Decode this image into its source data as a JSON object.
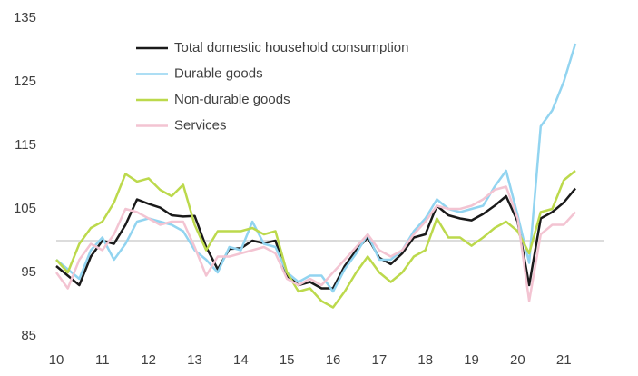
{
  "chart_data": {
    "type": "line",
    "x": [
      10,
      10.25,
      10.5,
      10.75,
      11,
      11.25,
      11.5,
      11.75,
      12,
      12.25,
      12.5,
      12.75,
      13,
      13.25,
      13.5,
      13.75,
      14,
      14.25,
      14.5,
      14.75,
      15,
      15.25,
      15.5,
      15.75,
      16,
      16.25,
      16.5,
      16.75,
      17,
      17.25,
      17.5,
      17.75,
      18,
      18.25,
      18.5,
      18.75,
      19,
      19.25,
      19.5,
      19.75,
      20,
      20.25,
      20.5,
      20.75,
      21,
      21.25
    ],
    "series": [
      {
        "name": "Total domestic household consumption",
        "color": "#1a1a1a",
        "values": [
          96,
          94.5,
          93,
          97.5,
          100,
          99.5,
          102.5,
          106.5,
          105.8,
          105.2,
          104,
          103.8,
          103.9,
          99,
          95.5,
          98.7,
          98.8,
          100,
          99.6,
          100,
          94.5,
          93,
          93.5,
          92.5,
          92.5,
          96,
          98.5,
          100.5,
          97.3,
          96.3,
          98,
          100.5,
          101,
          105.5,
          104,
          103.5,
          103.2,
          104.2,
          105.5,
          107,
          103,
          93,
          103.5,
          104.5,
          106,
          108.2
        ]
      },
      {
        "name": "Durable goods",
        "color": "#92d4f0",
        "values": [
          97,
          95.5,
          94,
          98.5,
          100.5,
          97,
          99.5,
          103,
          103.5,
          103,
          102.5,
          101.5,
          98.5,
          97,
          95,
          99,
          98.5,
          103,
          99.5,
          99,
          95,
          93.5,
          94.5,
          94.5,
          92,
          95.5,
          98,
          101,
          97,
          97,
          98.5,
          101.5,
          103.5,
          106.5,
          105,
          104.5,
          105,
          105.5,
          108.5,
          111,
          104,
          96.5,
          118,
          120.5,
          125,
          131
        ]
      },
      {
        "name": "Non-durable goods",
        "color": "#bcd94c",
        "values": [
          97,
          95,
          99.5,
          102,
          103,
          106,
          110.5,
          109.3,
          109.8,
          108,
          107,
          108.8,
          102.5,
          98.5,
          101.5,
          101.5,
          101.5,
          102,
          101,
          101.5,
          95,
          92,
          92.5,
          90.5,
          89.5,
          92,
          95,
          97.5,
          95,
          93.5,
          95,
          97.5,
          98.5,
          103.5,
          100.5,
          100.5,
          99.2,
          100.5,
          102,
          103,
          101.5,
          98,
          104.5,
          105,
          109.5,
          111
        ]
      },
      {
        "name": "Services",
        "color": "#f3c4d2",
        "values": [
          95,
          92.5,
          97,
          99.5,
          98.5,
          101,
          105,
          104.5,
          103.5,
          102.5,
          103,
          103,
          99,
          94.5,
          97.5,
          97.5,
          98,
          98.5,
          99,
          98,
          94,
          93,
          94,
          93,
          95,
          97,
          99,
          101,
          98.5,
          97.5,
          98.5,
          101,
          103,
          105.5,
          105,
          105,
          105.5,
          106.5,
          108,
          108.5,
          103.5,
          90.5,
          101,
          102.5,
          102.5,
          104.5
        ]
      }
    ],
    "xlim": [
      10,
      21.9
    ],
    "xticks": [
      10,
      11,
      12,
      13,
      14,
      15,
      16,
      17,
      18,
      19,
      20,
      21
    ],
    "ylim": [
      85,
      135
    ],
    "yticks": [
      85,
      95,
      105,
      115,
      125,
      135
    ],
    "reference_line": 100,
    "grid": false,
    "legend": "upper left"
  }
}
